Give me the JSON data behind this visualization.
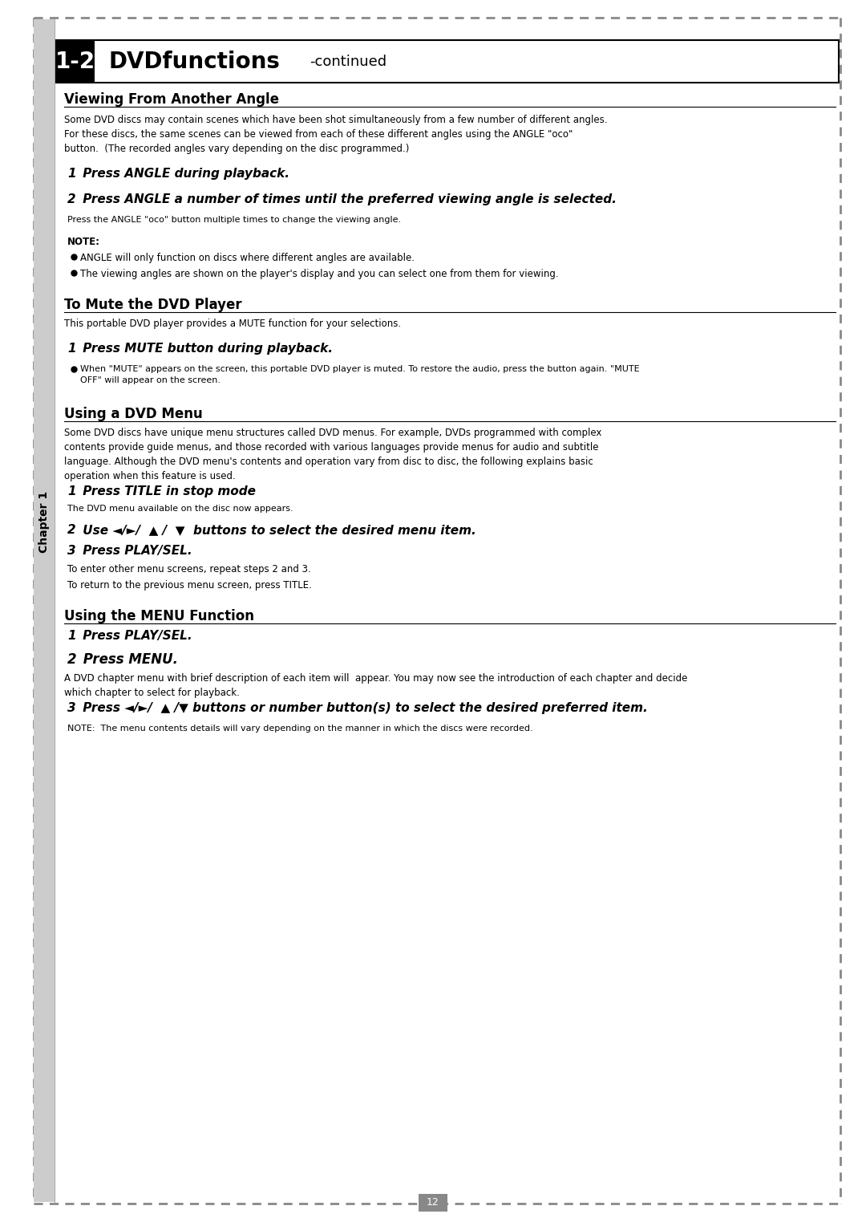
{
  "page_bg": "#ffffff",
  "border_dash_color": "#888888",
  "title_bg": "#000000",
  "title_text_color": "#ffffff",
  "title_label": "1-2",
  "title_main": "DVDfunctions",
  "title_suffix": "-continued",
  "section1_heading": "Viewing From Another Angle",
  "section1_body1": "Some DVD discs may contain scenes which have been shot simultaneously from a few number of different angles.\nFor these discs, the same scenes can be viewed from each of these different angles using the ANGLE \"ᴏᴄᴏ\"\nbutton.  (The recorded angles vary depending on the disc programmed.)",
  "section1_step1_num": "1",
  "section1_step1_text": " Press ANGLE during playback.",
  "section1_step2_num": "2",
  "section1_step2_text": " Press ANGLE a number of times until the preferred viewing angle is selected.",
  "section1_step2_sub": "Press the ANGLE \"ᴏᴄᴏ\" button multiple times to change the viewing angle.",
  "section1_note_label": "NOTE:",
  "section1_note1": "ANGLE will only function on discs where different angles are available.",
  "section1_note2": "The viewing angles are shown on the player's display and you can select one from them for viewing.",
  "section2_heading": "To Mute the DVD Player",
  "section2_body": "This portable DVD player provides a MUTE function for your selections.",
  "section2_step1_num": "1",
  "section2_step1_text": " Press MUTE button during playback.",
  "section2_bullet": "When \"MUTE\" appears on the screen, this portable DVD player is muted. To restore the audio, press the button again. \"MUTE\nOFF\" will appear on the screen.",
  "section3_heading": "Using a DVD Menu",
  "section3_body": "Some DVD discs have unique menu structures called DVD menus. For example, DVDs programmed with complex\ncontents provide guide menus, and those recorded with various languages provide menus for audio and subtitle\nlanguage. Although the DVD menu's contents and operation vary from disc to disc, the following explains basic\noperation when this feature is used.",
  "section3_step1_num": "1",
  "section3_step1_text": " Press TITLE in stop mode",
  "section3_step1_sub": "The DVD menu available on the disc now appears.",
  "section3_step2_num": "2",
  "section3_step2_text": " Use ◄/►/  ᴵ /  ᴵ  buttons to select the desired menu item.",
  "section3_step3_num": "3",
  "section3_step3_text": " Press PLAY/SEL.",
  "section3_note1": "To enter other menu screens, repeat steps 2 and 3.",
  "section3_note2": "To return to the previous menu screen, press TITLE.",
  "section4_heading": "Using the MENU Function",
  "section4_step1_num": "1",
  "section4_step1_text": " Press PLAY/SEL.",
  "section4_step2_num": "2",
  "section4_step2_text": " Press MENU.",
  "section4_body": "A DVD chapter menu with brief description of each item will  appear. You may now see the introduction of each chapter and decide\nwhich chapter to select for playback.",
  "section4_step3_num": "3",
  "section4_step3_text": " Press ◄/►/  ᴵ /▼ buttons or number button(s) to select the desired preferred item.",
  "section4_note": "NOTE:  The menu contents details will vary depending on the manner in which the discs were recorded.",
  "footer_text": "12",
  "chapter_label": "Chapter 1",
  "left_bar_color": "#888888",
  "footer_box_color": "#888888",
  "footer_text_color": "#ffffff"
}
